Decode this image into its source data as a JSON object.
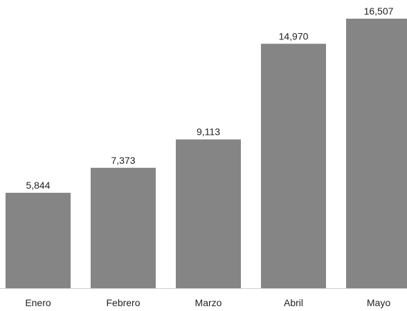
{
  "chart_data": {
    "type": "bar",
    "categories": [
      "Enero",
      "Febrero",
      "Marzo",
      "Abril",
      "Mayo"
    ],
    "values": [
      5844,
      7373,
      9113,
      14970,
      16507
    ],
    "value_labels": [
      "5,844",
      "7,373",
      "9,113",
      "14,970",
      "16,507"
    ],
    "title": "",
    "xlabel": "",
    "ylabel": "",
    "ylim": [
      0,
      16507
    ],
    "grid": false,
    "legend": "none",
    "bar_color": "#858585"
  }
}
